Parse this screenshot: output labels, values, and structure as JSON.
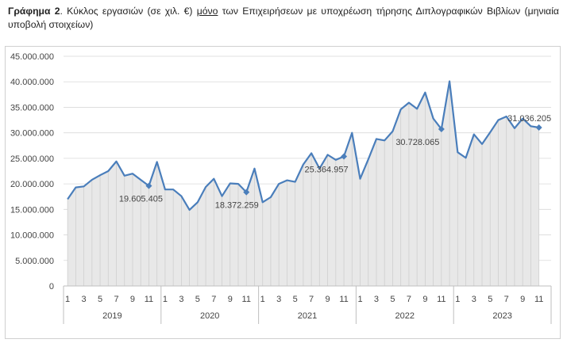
{
  "caption": {
    "label": "Γράφημα 2",
    "text_before": ". Κύκλος εργασιών (σε χιλ. €) ",
    "emphasis": "μόνο",
    "text_after": " των Επιχειρήσεων με υποχρέωση τήρησης Διπλογραφικών Βιβλίων (μηνιαία υποβολή στοιχείων)"
  },
  "colors": {
    "line": "#4a7ebb",
    "fill": "#e8e8e8",
    "fill_lines": "#cfcfcf",
    "grid": "#d9d9d9",
    "axis_text": "#444444"
  },
  "chart_data": {
    "type": "area",
    "y_ticks": [
      "0",
      "5.000.000",
      "10.000.000",
      "15.000.000",
      "20.000.000",
      "25.000.000",
      "30.000.000",
      "35.000.000",
      "40.000.000",
      "45.000.000"
    ],
    "ylim": [
      0,
      45000000
    ],
    "months_shown": [
      "1",
      "3",
      "5",
      "7",
      "9",
      "11"
    ],
    "years": [
      "2019",
      "2020",
      "2021",
      "2022",
      "2023"
    ],
    "series": [
      {
        "values": [
          17000000,
          19300000,
          19500000,
          20800000,
          21700000,
          22500000,
          24400000,
          21600000,
          22000000,
          20800000,
          19605405,
          24300000,
          18900000,
          18900000,
          17600000,
          14900000,
          16400000,
          19400000,
          21000000,
          17600000,
          20100000,
          20000000,
          18372259,
          23000000,
          16400000,
          17400000,
          20000000,
          20700000,
          20400000,
          23800000,
          26000000,
          23000000,
          25700000,
          24700000,
          25364957,
          30000000,
          21000000,
          24800000,
          28800000,
          28500000,
          30300000,
          34600000,
          35900000,
          34700000,
          37900000,
          32800000,
          30728065,
          40100000,
          26200000,
          25100000,
          29700000,
          27800000,
          30100000,
          32500000,
          33200000,
          30900000,
          32800000,
          31300000,
          31036205
        ]
      }
    ],
    "annotations": [
      {
        "index": 10,
        "label": "19.605.405"
      },
      {
        "index": 22,
        "label": "18.372.259"
      },
      {
        "index": 34,
        "label": "25.364.957"
      },
      {
        "index": 46,
        "label": "30.728.065"
      },
      {
        "index": 58,
        "label": "31.036.205"
      }
    ]
  }
}
